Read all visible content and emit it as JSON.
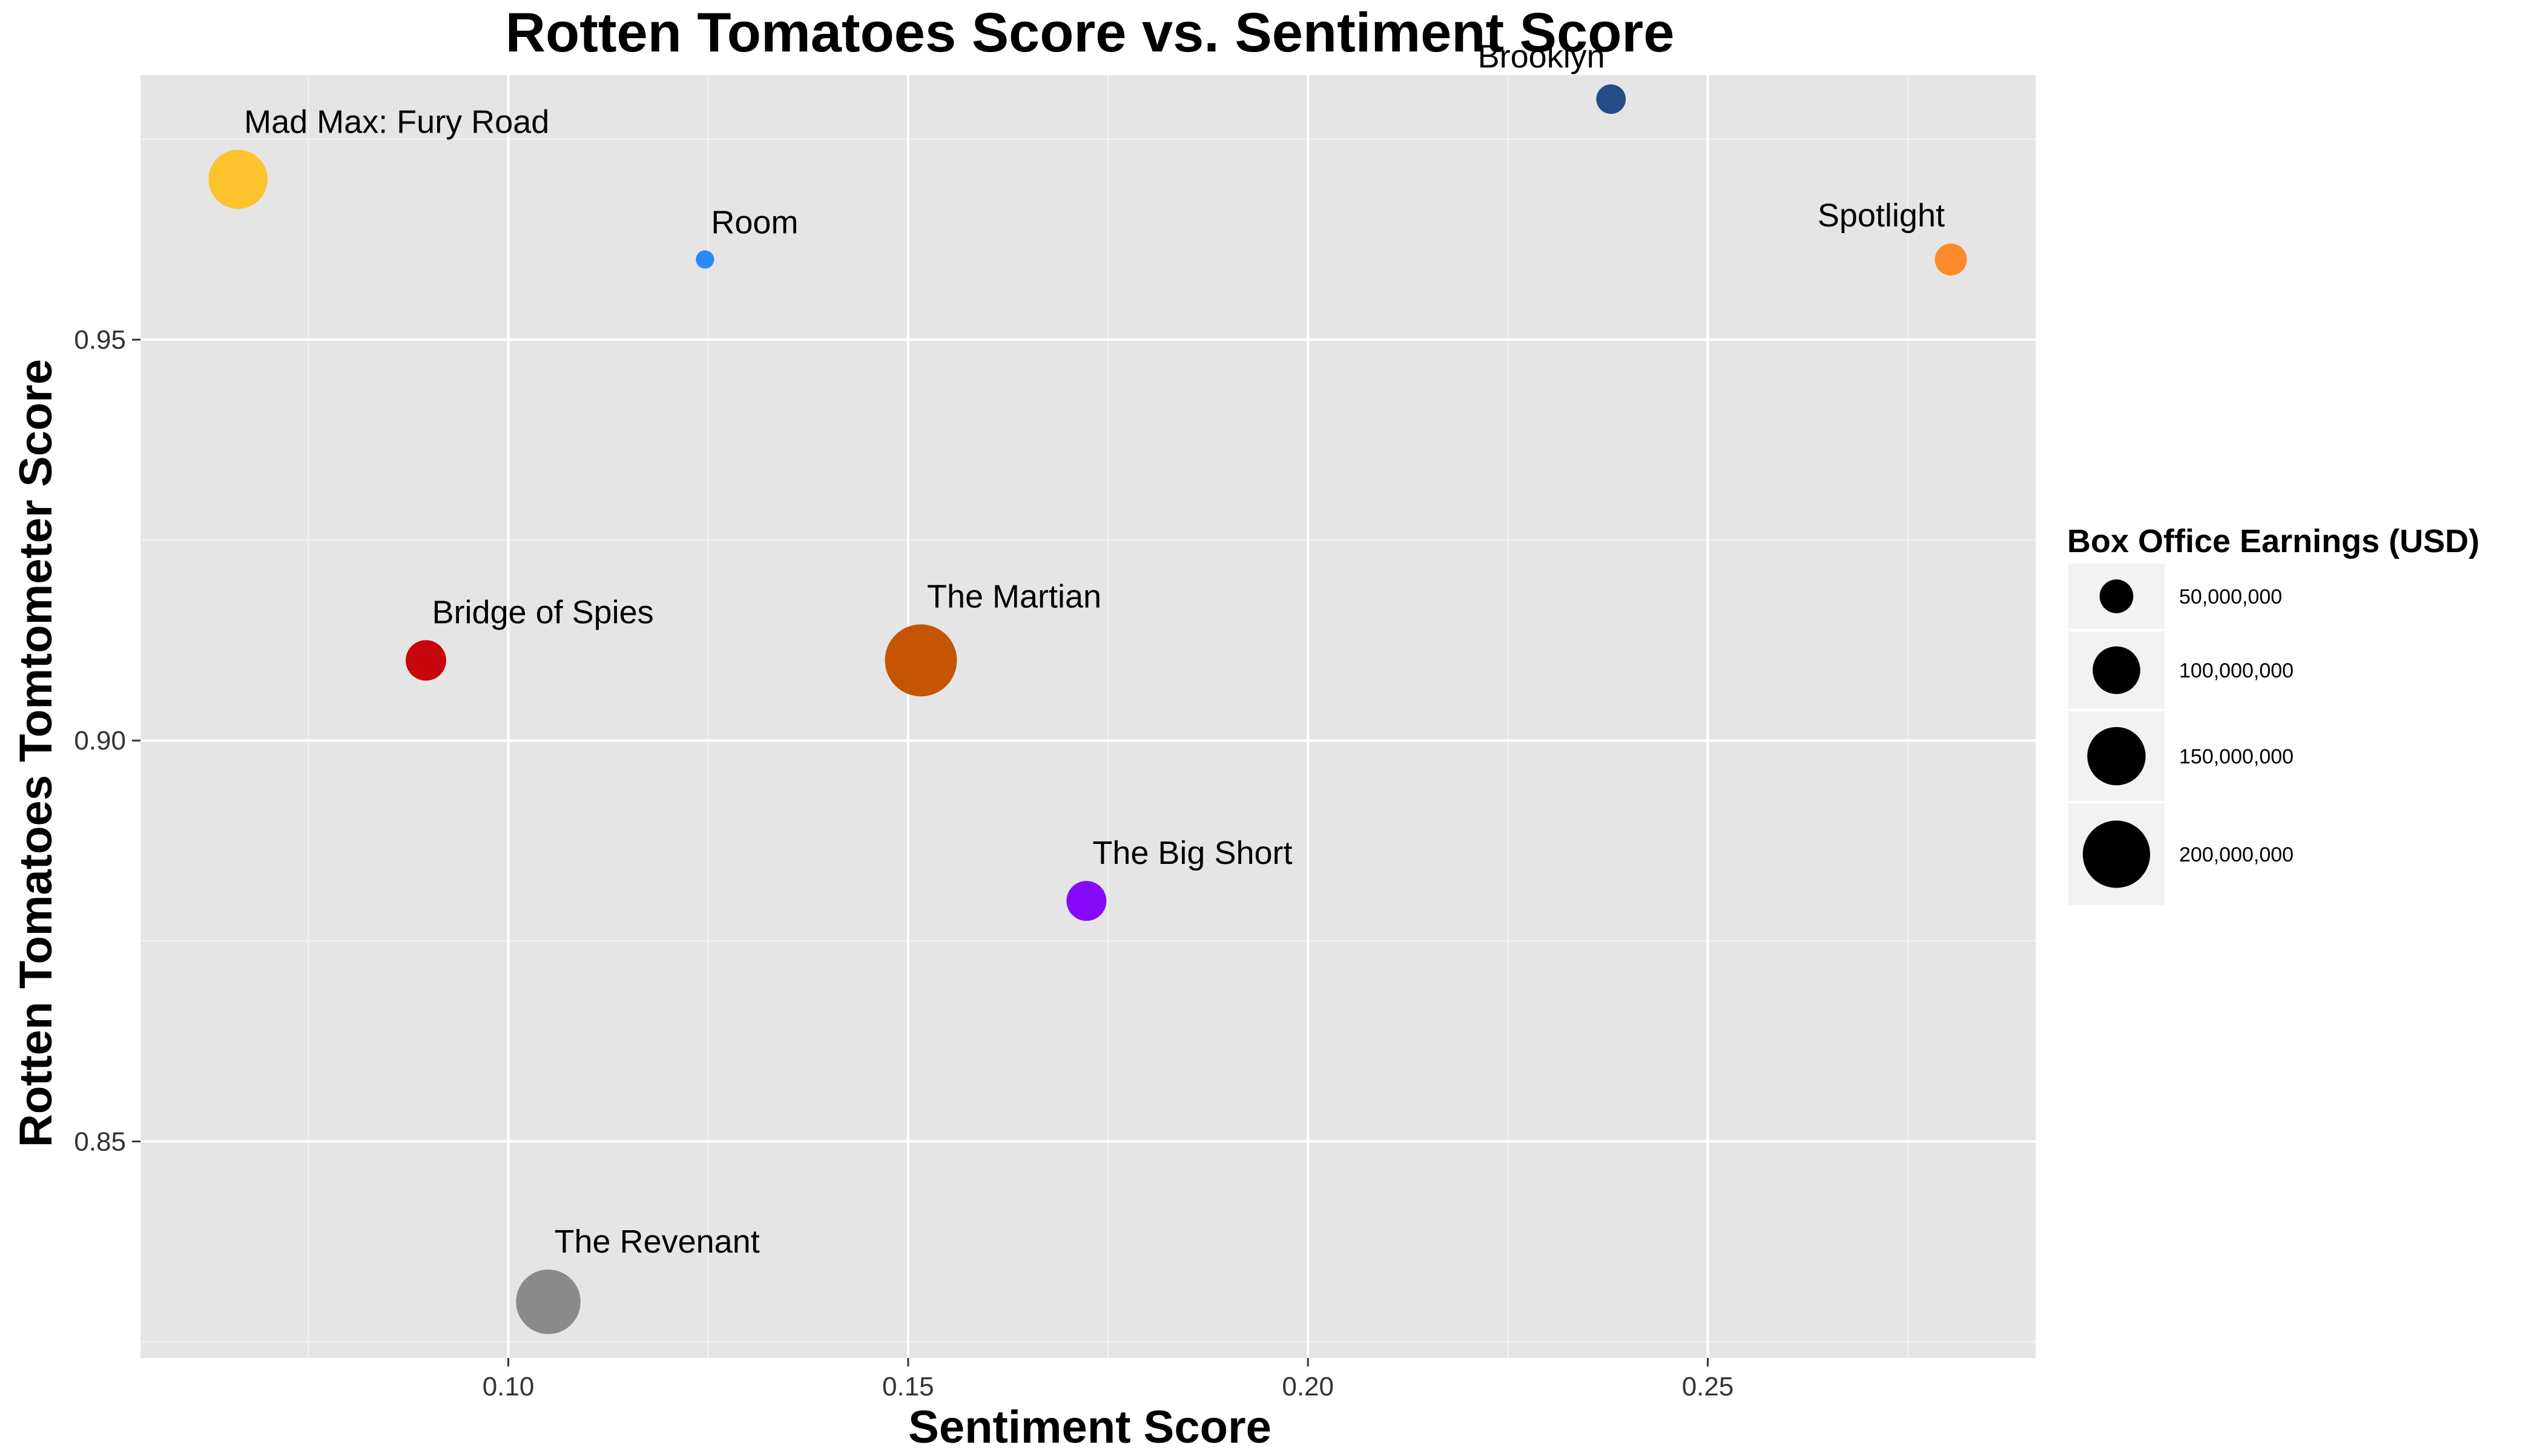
{
  "chart_data": {
    "type": "scatter",
    "title": "Rotten Tomatoes Score vs. Sentiment Score",
    "xlabel": "Sentiment Score",
    "ylabel": "Rotten Tomatoes Tomtometer Score",
    "xlim": [
      0.054,
      0.291
    ],
    "ylim": [
      0.823,
      0.983
    ],
    "x_major_ticks": [
      0.1,
      0.15,
      0.2,
      0.25
    ],
    "x_tick_labels": [
      "0.10",
      "0.15",
      "0.20",
      "0.25"
    ],
    "x_minor_ticks": [
      0.075,
      0.125,
      0.175,
      0.225,
      0.275
    ],
    "y_major_ticks": [
      0.85,
      0.9,
      0.95
    ],
    "y_tick_labels": [
      "0.85",
      "0.90",
      "0.95"
    ],
    "y_minor_ticks": [
      0.825,
      0.875,
      0.925,
      0.975
    ],
    "grid": true,
    "size_scale_max": 225000000,
    "points": [
      {
        "label": "Mad Max: Fury Road",
        "x": 0.0662,
        "y": 0.97,
        "size": 154000000,
        "color": "#fec22e",
        "label_pos": "above-right"
      },
      {
        "label": "Room",
        "x": 0.1246,
        "y": 0.96,
        "size": 14700000,
        "color": "#2b89f6",
        "label_pos": "above-right"
      },
      {
        "label": "Brooklyn",
        "x": 0.2379,
        "y": 0.98,
        "size": 38300000,
        "color": "#244c86",
        "label_pos": "above-left"
      },
      {
        "label": "Spotlight",
        "x": 0.2804,
        "y": 0.96,
        "size": 45000000,
        "color": "#fe8929",
        "label_pos": "above-left"
      },
      {
        "label": "Bridge of Spies",
        "x": 0.0897,
        "y": 0.91,
        "size": 72300000,
        "color": "#c7050a",
        "label_pos": "above-right"
      },
      {
        "label": "The Martian",
        "x": 0.1516,
        "y": 0.91,
        "size": 228400000,
        "color": "#c55403",
        "label_pos": "above-right"
      },
      {
        "label": "The Big Short",
        "x": 0.1723,
        "y": 0.88,
        "size": 70300000,
        "color": "#8709fa",
        "label_pos": "above-right"
      },
      {
        "label": "The Revenant",
        "x": 0.105,
        "y": 0.83,
        "size": 183600000,
        "color": "#8a8a8a",
        "label_pos": "above-right"
      }
    ],
    "legend": {
      "title": "Box Office Earnings (USD)",
      "placement": "right",
      "entries": [
        {
          "label": "50,000,000",
          "size": 50000000
        },
        {
          "label": "100,000,000",
          "size": 100000000
        },
        {
          "label": "150,000,000",
          "size": 150000000
        },
        {
          "label": "200,000,000",
          "size": 200000000
        }
      ]
    },
    "colors": {
      "panel_bg": "#e5e5e5",
      "grid_major": "#ffffff",
      "grid_minor": "#f2f2f2",
      "text": "#000000",
      "tick_text": "#333333",
      "legend_key_bg": "#f2f2f2",
      "legend_marker": "#000000"
    }
  }
}
